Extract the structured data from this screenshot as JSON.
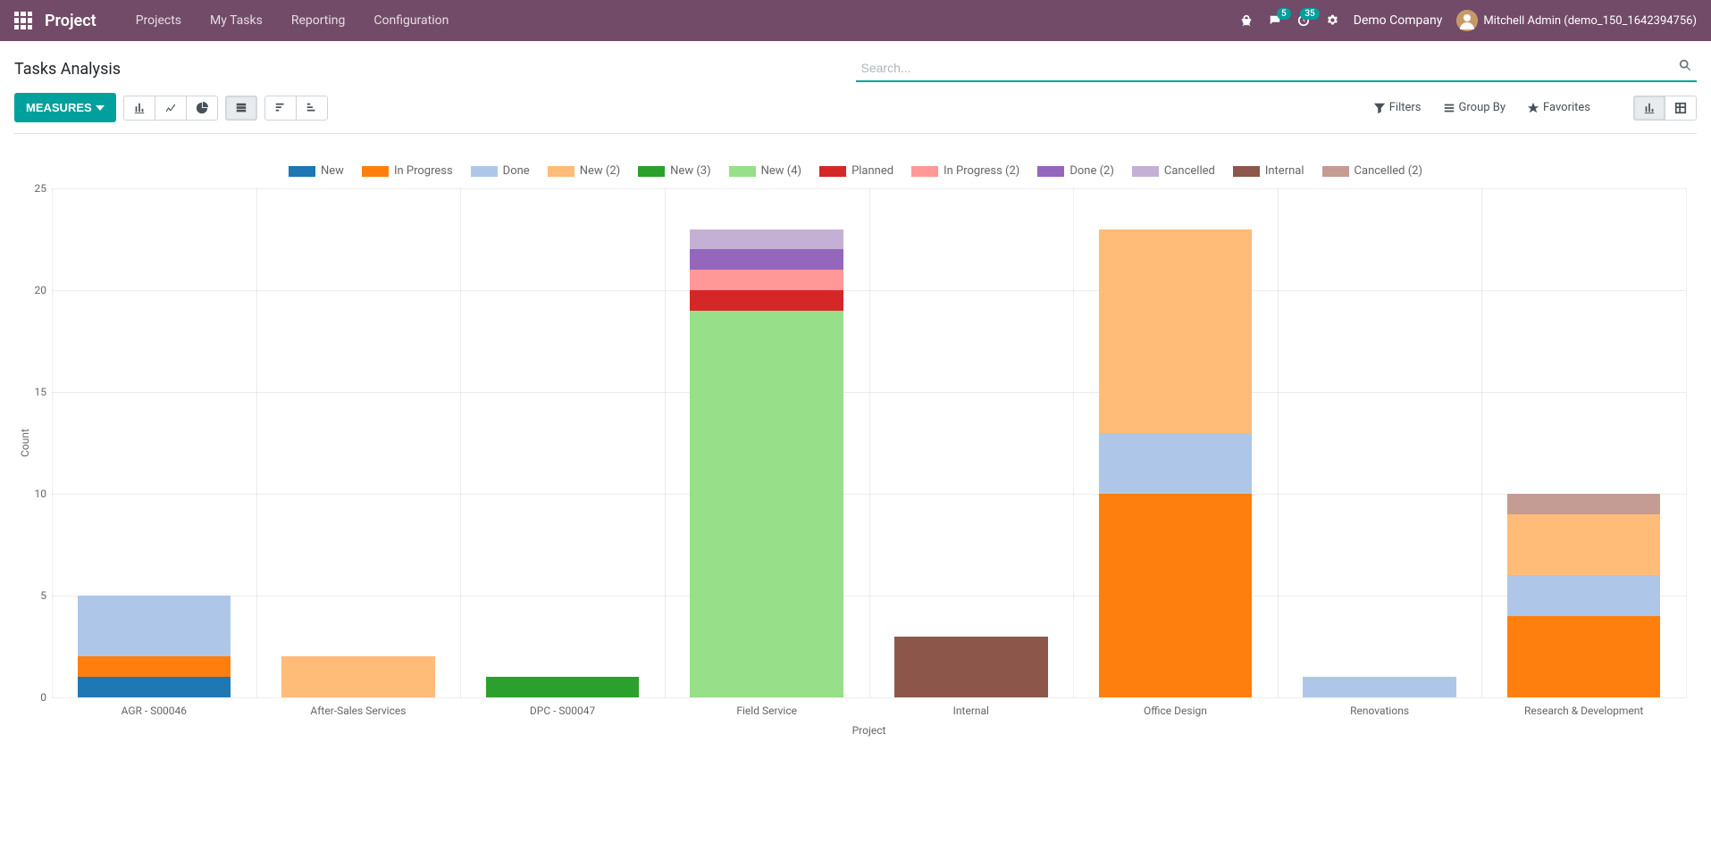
{
  "header": {
    "brand": "Project",
    "menu": [
      "Projects",
      "My Tasks",
      "Reporting",
      "Configuration"
    ],
    "messages_badge": "5",
    "activities_badge": "35",
    "company": "Demo Company",
    "user": "Mitchell Admin (demo_150_1642394756)"
  },
  "control": {
    "title": "Tasks Analysis",
    "measures_label": "Measures",
    "search_placeholder": "Search...",
    "filters": "Filters",
    "group_by": "Group By",
    "favorites": "Favorites"
  },
  "chart": {
    "type": "stacked-bar",
    "y_label": "Count",
    "x_label": "Project",
    "y_max": 25,
    "y_step": 5,
    "series": [
      {
        "key": "New",
        "label": "New",
        "color": "#1f77b4"
      },
      {
        "key": "InProgress",
        "label": "In Progress",
        "color": "#ff7f0e"
      },
      {
        "key": "Done",
        "label": "Done",
        "color": "#aec7e8"
      },
      {
        "key": "New2",
        "label": "New (2)",
        "color": "#ffbb78"
      },
      {
        "key": "New3",
        "label": "New (3)",
        "color": "#2ca02c"
      },
      {
        "key": "New4",
        "label": "New (4)",
        "color": "#98df8a"
      },
      {
        "key": "Planned",
        "label": "Planned",
        "color": "#d62728"
      },
      {
        "key": "InProgress2",
        "label": "In Progress (2)",
        "color": "#ff9896"
      },
      {
        "key": "Done2",
        "label": "Done (2)",
        "color": "#9467bd"
      },
      {
        "key": "Cancelled",
        "label": "Cancelled",
        "color": "#c5b0d5"
      },
      {
        "key": "Internal",
        "label": "Internal",
        "color": "#8c564b"
      },
      {
        "key": "Cancelled2",
        "label": "Cancelled (2)",
        "color": "#c49c94"
      }
    ],
    "categories": [
      {
        "label": "AGR - S00046",
        "values": {
          "New": 1,
          "InProgress": 1,
          "Done": 3
        }
      },
      {
        "label": "After-Sales Services",
        "values": {
          "New2": 2
        }
      },
      {
        "label": "DPC - S00047",
        "values": {
          "New3": 1
        }
      },
      {
        "label": "Field Service",
        "values": {
          "New4": 19,
          "Planned": 1,
          "InProgress2": 1,
          "Done2": 1,
          "Cancelled": 1
        }
      },
      {
        "label": "Internal",
        "values": {
          "Internal": 3
        }
      },
      {
        "label": "Office Design",
        "values": {
          "InProgress": 10,
          "Done": 3,
          "New2": 10
        }
      },
      {
        "label": "Renovations",
        "values": {
          "Done": 1
        }
      },
      {
        "label": "Research & Development",
        "values": {
          "InProgress": 4,
          "Done": 2,
          "New2": 3,
          "Cancelled2": 1
        }
      }
    ]
  }
}
